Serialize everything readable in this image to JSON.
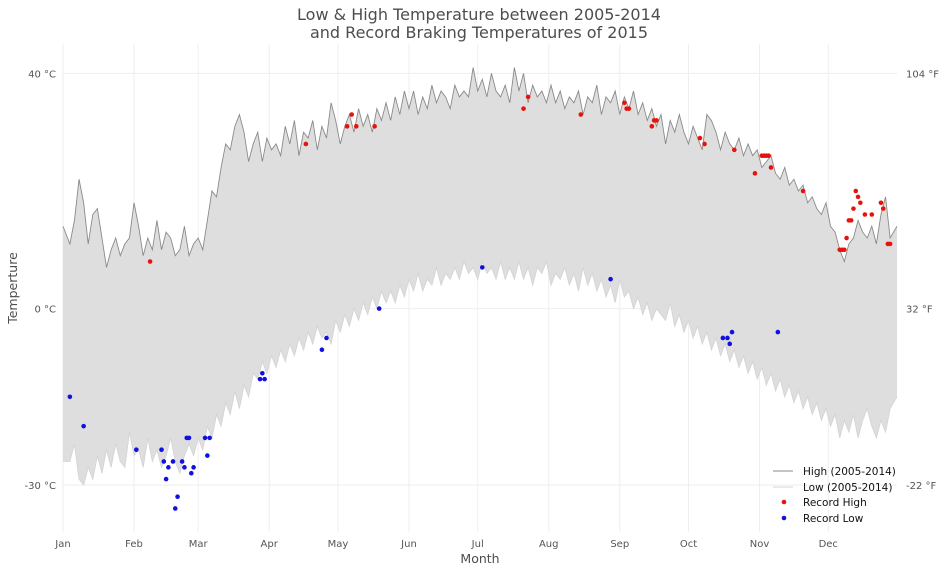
{
  "chart_data": {
    "type": "line",
    "title_line1": "Low & High Temperature between 2005-2014",
    "title_line2": "and Record Braking Temperatures of 2015",
    "xlabel": "Month",
    "ylabel": "Temperture",
    "x_ticks": [
      "Jan",
      "Feb",
      "Mar",
      "Apr",
      "May",
      "Jun",
      "Jul",
      "Aug",
      "Sep",
      "Oct",
      "Nov",
      "Dec"
    ],
    "x_tick_days": [
      1,
      32,
      60,
      91,
      121,
      152,
      182,
      213,
      244,
      274,
      305,
      335
    ],
    "xlim": [
      1,
      365
    ],
    "ylim": [
      -38,
      45
    ],
    "y_ticks": [
      {
        "value": 40,
        "label": "40 °C"
      },
      {
        "value": 0,
        "label": "0 °C"
      },
      {
        "value": -30,
        "label": "-30 °C"
      }
    ],
    "y2_ticks": [
      {
        "value": 40,
        "label": "104 °F"
      },
      {
        "value": 0,
        "label": "32 °F"
      },
      {
        "value": -30,
        "label": "-22 °F"
      }
    ],
    "grid": true,
    "legend_position": "bottom-right",
    "legend": [
      {
        "key": "high",
        "label": "High (2005-2014)"
      },
      {
        "key": "low",
        "label": "Low (2005-2014)"
      },
      {
        "key": "record_high",
        "label": "Record High"
      },
      {
        "key": "record_low",
        "label": "Record Low"
      }
    ],
    "colors": {
      "fill": "#dedede",
      "high_line": "#8a8a8a",
      "low_line": "#d4d4d4",
      "record_high": "#e8120c",
      "record_low": "#1010e0"
    },
    "high_series": [
      [
        1,
        14
      ],
      [
        4,
        11
      ],
      [
        6,
        15
      ],
      [
        8,
        22
      ],
      [
        10,
        18
      ],
      [
        12,
        11
      ],
      [
        14,
        16
      ],
      [
        16,
        17
      ],
      [
        18,
        12
      ],
      [
        20,
        7
      ],
      [
        22,
        10
      ],
      [
        24,
        12
      ],
      [
        26,
        9
      ],
      [
        28,
        11
      ],
      [
        30,
        12
      ],
      [
        32,
        18
      ],
      [
        34,
        14
      ],
      [
        36,
        9
      ],
      [
        38,
        12
      ],
      [
        40,
        10
      ],
      [
        42,
        15
      ],
      [
        44,
        10
      ],
      [
        46,
        13
      ],
      [
        48,
        12
      ],
      [
        50,
        9
      ],
      [
        52,
        10
      ],
      [
        54,
        14
      ],
      [
        56,
        9
      ],
      [
        58,
        11
      ],
      [
        60,
        12
      ],
      [
        62,
        10
      ],
      [
        64,
        15
      ],
      [
        66,
        20
      ],
      [
        68,
        19
      ],
      [
        70,
        24
      ],
      [
        72,
        28
      ],
      [
        74,
        27
      ],
      [
        76,
        31
      ],
      [
        78,
        33
      ],
      [
        80,
        30
      ],
      [
        82,
        25
      ],
      [
        84,
        28
      ],
      [
        86,
        30
      ],
      [
        88,
        25
      ],
      [
        90,
        29
      ],
      [
        92,
        27
      ],
      [
        94,
        28
      ],
      [
        96,
        26
      ],
      [
        98,
        31
      ],
      [
        100,
        28
      ],
      [
        102,
        32
      ],
      [
        104,
        26
      ],
      [
        106,
        30
      ],
      [
        108,
        29
      ],
      [
        110,
        32
      ],
      [
        112,
        27
      ],
      [
        114,
        31
      ],
      [
        116,
        29
      ],
      [
        118,
        35
      ],
      [
        120,
        32
      ],
      [
        122,
        28
      ],
      [
        124,
        31
      ],
      [
        126,
        33
      ],
      [
        128,
        30
      ],
      [
        130,
        34
      ],
      [
        132,
        31
      ],
      [
        134,
        33
      ],
      [
        136,
        30
      ],
      [
        138,
        34
      ],
      [
        140,
        32
      ],
      [
        142,
        35
      ],
      [
        144,
        32
      ],
      [
        146,
        36
      ],
      [
        148,
        33
      ],
      [
        150,
        37
      ],
      [
        152,
        34
      ],
      [
        154,
        37
      ],
      [
        156,
        33
      ],
      [
        158,
        36
      ],
      [
        160,
        34
      ],
      [
        162,
        38
      ],
      [
        164,
        35
      ],
      [
        166,
        37
      ],
      [
        168,
        36
      ],
      [
        170,
        34
      ],
      [
        172,
        38
      ],
      [
        174,
        36
      ],
      [
        176,
        37
      ],
      [
        178,
        36
      ],
      [
        180,
        41
      ],
      [
        182,
        37
      ],
      [
        184,
        39
      ],
      [
        186,
        36
      ],
      [
        188,
        40
      ],
      [
        190,
        37
      ],
      [
        192,
        36
      ],
      [
        194,
        38
      ],
      [
        196,
        35
      ],
      [
        198,
        41
      ],
      [
        200,
        37
      ],
      [
        202,
        40
      ],
      [
        204,
        35
      ],
      [
        206,
        38
      ],
      [
        208,
        36
      ],
      [
        210,
        37
      ],
      [
        212,
        35
      ],
      [
        214,
        38
      ],
      [
        216,
        35
      ],
      [
        218,
        37
      ],
      [
        220,
        34
      ],
      [
        222,
        36
      ],
      [
        224,
        35
      ],
      [
        226,
        37
      ],
      [
        228,
        33
      ],
      [
        230,
        36
      ],
      [
        232,
        35
      ],
      [
        234,
        38
      ],
      [
        236,
        33
      ],
      [
        238,
        36
      ],
      [
        240,
        35
      ],
      [
        242,
        37
      ],
      [
        244,
        33
      ],
      [
        246,
        36
      ],
      [
        248,
        34
      ],
      [
        250,
        37
      ],
      [
        252,
        33
      ],
      [
        254,
        35
      ],
      [
        256,
        32
      ],
      [
        258,
        34
      ],
      [
        260,
        31
      ],
      [
        262,
        33
      ],
      [
        264,
        28
      ],
      [
        266,
        32
      ],
      [
        268,
        30
      ],
      [
        270,
        33
      ],
      [
        272,
        30
      ],
      [
        274,
        28
      ],
      [
        276,
        31
      ],
      [
        278,
        29
      ],
      [
        280,
        27
      ],
      [
        282,
        33
      ],
      [
        284,
        32
      ],
      [
        286,
        30
      ],
      [
        288,
        27
      ],
      [
        290,
        30
      ],
      [
        292,
        28
      ],
      [
        294,
        27
      ],
      [
        296,
        29
      ],
      [
        298,
        26
      ],
      [
        300,
        28
      ],
      [
        302,
        26
      ],
      [
        304,
        27
      ],
      [
        306,
        24
      ],
      [
        308,
        25
      ],
      [
        310,
        26
      ],
      [
        312,
        23
      ],
      [
        314,
        22
      ],
      [
        316,
        24
      ],
      [
        318,
        21
      ],
      [
        320,
        22
      ],
      [
        322,
        20
      ],
      [
        324,
        21
      ],
      [
        326,
        18
      ],
      [
        328,
        19
      ],
      [
        330,
        17
      ],
      [
        332,
        16
      ],
      [
        334,
        18
      ],
      [
        336,
        14
      ],
      [
        338,
        13
      ],
      [
        340,
        10
      ],
      [
        342,
        8
      ],
      [
        344,
        11
      ],
      [
        346,
        12
      ],
      [
        348,
        15
      ],
      [
        350,
        13
      ],
      [
        352,
        12
      ],
      [
        354,
        14
      ],
      [
        356,
        11
      ],
      [
        358,
        16
      ],
      [
        360,
        19
      ],
      [
        362,
        12
      ],
      [
        365,
        14
      ]
    ],
    "low_series": [
      [
        1,
        -26
      ],
      [
        4,
        -26
      ],
      [
        6,
        -23
      ],
      [
        8,
        -29
      ],
      [
        10,
        -30
      ],
      [
        12,
        -27
      ],
      [
        14,
        -29
      ],
      [
        16,
        -25
      ],
      [
        18,
        -28
      ],
      [
        20,
        -24
      ],
      [
        22,
        -27
      ],
      [
        24,
        -23
      ],
      [
        26,
        -26
      ],
      [
        28,
        -27
      ],
      [
        30,
        -21
      ],
      [
        32,
        -25
      ],
      [
        34,
        -24
      ],
      [
        36,
        -27
      ],
      [
        38,
        -22
      ],
      [
        40,
        -26
      ],
      [
        42,
        -24
      ],
      [
        44,
        -27
      ],
      [
        46,
        -25
      ],
      [
        48,
        -22
      ],
      [
        50,
        -26
      ],
      [
        52,
        -28
      ],
      [
        54,
        -25
      ],
      [
        56,
        -23
      ],
      [
        58,
        -25
      ],
      [
        60,
        -22
      ],
      [
        62,
        -24
      ],
      [
        64,
        -20
      ],
      [
        66,
        -22
      ],
      [
        68,
        -18
      ],
      [
        70,
        -20
      ],
      [
        72,
        -16
      ],
      [
        74,
        -18
      ],
      [
        76,
        -14
      ],
      [
        78,
        -17
      ],
      [
        80,
        -13
      ],
      [
        82,
        -15
      ],
      [
        84,
        -11
      ],
      [
        86,
        -12
      ],
      [
        88,
        -9
      ],
      [
        90,
        -11
      ],
      [
        92,
        -8
      ],
      [
        94,
        -10
      ],
      [
        96,
        -7
      ],
      [
        98,
        -9
      ],
      [
        100,
        -6
      ],
      [
        102,
        -8
      ],
      [
        104,
        -5
      ],
      [
        106,
        -7
      ],
      [
        108,
        -4
      ],
      [
        110,
        -6
      ],
      [
        112,
        -3
      ],
      [
        114,
        -5
      ],
      [
        116,
        -4
      ],
      [
        118,
        -6
      ],
      [
        120,
        -2
      ],
      [
        122,
        -4
      ],
      [
        124,
        -1
      ],
      [
        126,
        -3
      ],
      [
        128,
        0
      ],
      [
        130,
        -2
      ],
      [
        132,
        1
      ],
      [
        134,
        -1
      ],
      [
        136,
        2
      ],
      [
        138,
        0
      ],
      [
        140,
        3
      ],
      [
        142,
        1
      ],
      [
        144,
        3
      ],
      [
        146,
        1
      ],
      [
        148,
        4
      ],
      [
        150,
        2
      ],
      [
        152,
        5
      ],
      [
        154,
        3
      ],
      [
        156,
        6
      ],
      [
        158,
        3
      ],
      [
        160,
        5
      ],
      [
        162,
        4
      ],
      [
        164,
        7
      ],
      [
        166,
        4
      ],
      [
        168,
        6
      ],
      [
        170,
        5
      ],
      [
        172,
        7
      ],
      [
        174,
        5
      ],
      [
        176,
        8
      ],
      [
        178,
        6
      ],
      [
        180,
        7
      ],
      [
        182,
        5
      ],
      [
        184,
        8
      ],
      [
        186,
        6
      ],
      [
        188,
        7
      ],
      [
        190,
        5
      ],
      [
        192,
        8
      ],
      [
        194,
        5
      ],
      [
        196,
        7
      ],
      [
        198,
        5
      ],
      [
        200,
        8
      ],
      [
        202,
        5
      ],
      [
        204,
        7
      ],
      [
        206,
        4
      ],
      [
        208,
        7
      ],
      [
        210,
        6
      ],
      [
        212,
        8
      ],
      [
        214,
        4
      ],
      [
        216,
        6
      ],
      [
        218,
        5
      ],
      [
        220,
        7
      ],
      [
        222,
        4
      ],
      [
        224,
        6
      ],
      [
        226,
        3
      ],
      [
        228,
        7
      ],
      [
        230,
        4
      ],
      [
        232,
        6
      ],
      [
        234,
        3
      ],
      [
        236,
        5
      ],
      [
        238,
        2
      ],
      [
        240,
        4
      ],
      [
        242,
        1
      ],
      [
        244,
        5
      ],
      [
        246,
        2
      ],
      [
        248,
        3
      ],
      [
        250,
        0
      ],
      [
        252,
        2
      ],
      [
        254,
        -1
      ],
      [
        256,
        1
      ],
      [
        258,
        -2
      ],
      [
        260,
        0
      ],
      [
        262,
        -1
      ],
      [
        264,
        -2
      ],
      [
        266,
        1
      ],
      [
        268,
        -3
      ],
      [
        270,
        -1
      ],
      [
        272,
        -4
      ],
      [
        274,
        -2
      ],
      [
        276,
        -5
      ],
      [
        278,
        -3
      ],
      [
        280,
        -6
      ],
      [
        282,
        -4
      ],
      [
        284,
        -7
      ],
      [
        286,
        -5
      ],
      [
        288,
        -8
      ],
      [
        290,
        -6
      ],
      [
        292,
        -9
      ],
      [
        294,
        -7
      ],
      [
        296,
        -10
      ],
      [
        298,
        -8
      ],
      [
        300,
        -11
      ],
      [
        302,
        -9
      ],
      [
        304,
        -12
      ],
      [
        306,
        -10
      ],
      [
        308,
        -13
      ],
      [
        310,
        -11
      ],
      [
        312,
        -14
      ],
      [
        314,
        -12
      ],
      [
        316,
        -15
      ],
      [
        318,
        -13
      ],
      [
        320,
        -16
      ],
      [
        322,
        -14
      ],
      [
        324,
        -17
      ],
      [
        326,
        -15
      ],
      [
        328,
        -18
      ],
      [
        330,
        -16
      ],
      [
        332,
        -19
      ],
      [
        334,
        -17
      ],
      [
        336,
        -20
      ],
      [
        338,
        -18
      ],
      [
        340,
        -22
      ],
      [
        342,
        -19
      ],
      [
        344,
        -21
      ],
      [
        346,
        -18
      ],
      [
        348,
        -22
      ],
      [
        350,
        -19
      ],
      [
        352,
        -17
      ],
      [
        354,
        -20
      ],
      [
        356,
        -22
      ],
      [
        358,
        -19
      ],
      [
        360,
        -21
      ],
      [
        362,
        -17
      ],
      [
        365,
        -15
      ]
    ],
    "record_highs": [
      [
        39,
        8
      ],
      [
        107,
        28
      ],
      [
        125,
        31
      ],
      [
        127,
        33
      ],
      [
        129,
        31
      ],
      [
        137,
        31
      ],
      [
        202,
        34
      ],
      [
        204,
        36
      ],
      [
        227,
        33
      ],
      [
        246,
        35
      ],
      [
        247,
        34
      ],
      [
        248,
        34
      ],
      [
        258,
        31
      ],
      [
        259,
        32
      ],
      [
        260,
        32
      ],
      [
        279,
        29
      ],
      [
        281,
        28
      ],
      [
        294,
        27
      ],
      [
        306,
        26
      ],
      [
        307,
        26
      ],
      [
        308,
        26
      ],
      [
        309,
        26
      ],
      [
        310,
        24
      ],
      [
        303,
        23
      ],
      [
        324,
        20
      ],
      [
        340,
        10
      ],
      [
        341,
        10
      ],
      [
        342,
        10
      ],
      [
        343,
        12
      ],
      [
        344,
        15
      ],
      [
        345,
        15
      ],
      [
        346,
        17
      ],
      [
        347,
        20
      ],
      [
        348,
        19
      ],
      [
        349,
        18
      ],
      [
        351,
        16
      ],
      [
        354,
        16
      ],
      [
        358,
        18
      ],
      [
        359,
        17
      ],
      [
        362,
        11
      ],
      [
        361,
        11
      ]
    ],
    "record_lows": [
      [
        4,
        -15
      ],
      [
        10,
        -20
      ],
      [
        33,
        -24
      ],
      [
        44,
        -24
      ],
      [
        45,
        -26
      ],
      [
        46,
        -29
      ],
      [
        47,
        -27
      ],
      [
        49,
        -26
      ],
      [
        50,
        -34
      ],
      [
        51,
        -32
      ],
      [
        53,
        -26
      ],
      [
        54,
        -27
      ],
      [
        55,
        -22
      ],
      [
        56,
        -22
      ],
      [
        57,
        -28
      ],
      [
        58,
        -27
      ],
      [
        63,
        -22
      ],
      [
        64,
        -25
      ],
      [
        65,
        -22
      ],
      [
        87,
        -12
      ],
      [
        88,
        -11
      ],
      [
        89,
        -12
      ],
      [
        114,
        -7
      ],
      [
        116,
        -5
      ],
      [
        139,
        0
      ],
      [
        184,
        7
      ],
      [
        240,
        5
      ],
      [
        289,
        -5
      ],
      [
        291,
        -5
      ],
      [
        292,
        -6
      ],
      [
        293,
        -4
      ],
      [
        313,
        -4
      ]
    ]
  }
}
